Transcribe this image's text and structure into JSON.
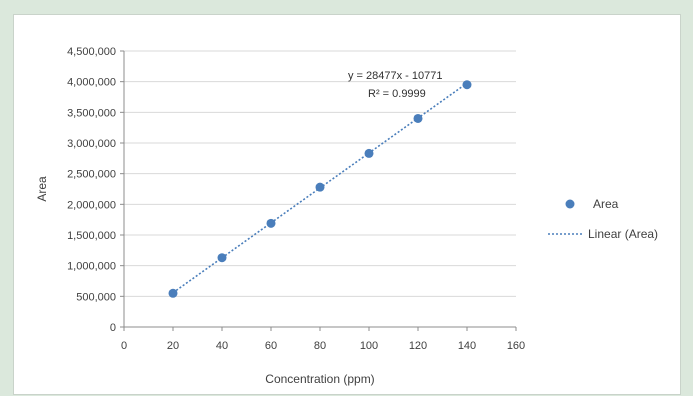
{
  "chart_data": {
    "type": "scatter",
    "xlabel": "Concentration (ppm)",
    "ylabel": "Area",
    "xlim": [
      0,
      160
    ],
    "ylim": [
      0,
      4500000
    ],
    "xticks": [
      0,
      20,
      40,
      60,
      80,
      100,
      120,
      140,
      160
    ],
    "xtick_labels": [
      "0",
      "20",
      "40",
      "60",
      "80",
      "100",
      "120",
      "140",
      "160"
    ],
    "yticks": [
      0,
      500000,
      1000000,
      1500000,
      2000000,
      2500000,
      3000000,
      3500000,
      4000000,
      4500000
    ],
    "ytick_labels": [
      "0",
      "500,000",
      "1,000,000",
      "1,500,000",
      "2,000,000",
      "2,500,000",
      "3,000,000",
      "3,500,000",
      "4,000,000",
      "4,500,000"
    ],
    "grid": true,
    "legend_position": "right",
    "series": [
      {
        "name": "Area",
        "x": [
          20,
          40,
          60,
          80,
          100,
          120,
          140
        ],
        "y": [
          550000,
          1130000,
          1690000,
          2280000,
          2830000,
          3400000,
          3950000
        ],
        "color": "#4a7ebb"
      }
    ],
    "trendline": {
      "name": "Linear (Area)",
      "slope": 28477,
      "intercept": -10771,
      "x_range": [
        20,
        140
      ],
      "color": "#4a7ebb"
    },
    "annotations": {
      "equation": "y = 28477x - 10771",
      "r_squared": "R² = 0.9999"
    }
  }
}
